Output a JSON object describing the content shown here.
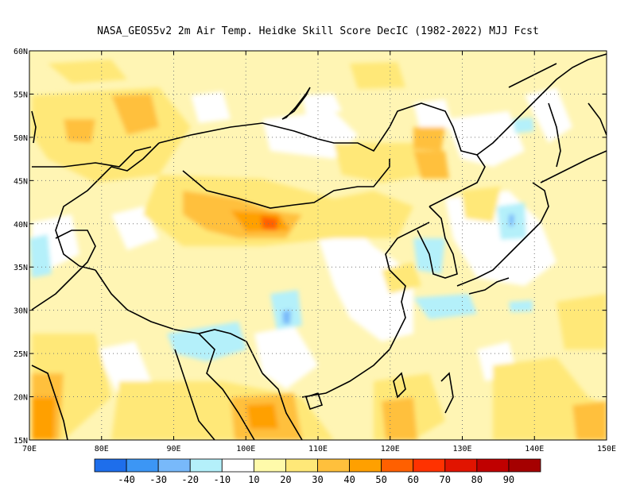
{
  "map": {
    "title": "NASA_GEOS5v2  2m Air Temp. Heidke Skill Score DecIC (1982-2022) MJJ Fcst",
    "lon_range": [
      70,
      150
    ],
    "lat_range": [
      15,
      60
    ],
    "x_tick_labels": [
      "70E",
      "80E",
      "90E",
      "100E",
      "110E",
      "120E",
      "130E",
      "140E",
      "150E"
    ],
    "y_tick_labels": [
      "15N",
      "20N",
      "25N",
      "30N",
      "35N",
      "40N",
      "45N",
      "50N",
      "55N",
      "60N"
    ],
    "gridlines": "dotted"
  },
  "colorbar": {
    "labels": [
      "-40",
      "-30",
      "-20",
      "-10",
      "10",
      "20",
      "30",
      "40",
      "50",
      "60",
      "70",
      "80",
      "90"
    ],
    "colors": [
      "#1e6eeb",
      "#3c96f5",
      "#78b9fa",
      "#b4f0fa",
      "#ffffff",
      "#fffaaa",
      "#ffe878",
      "#ffc03c",
      "#ffa000",
      "#ff6000",
      "#ff3200",
      "#e11400",
      "#c00000",
      "#a50000"
    ]
  }
}
